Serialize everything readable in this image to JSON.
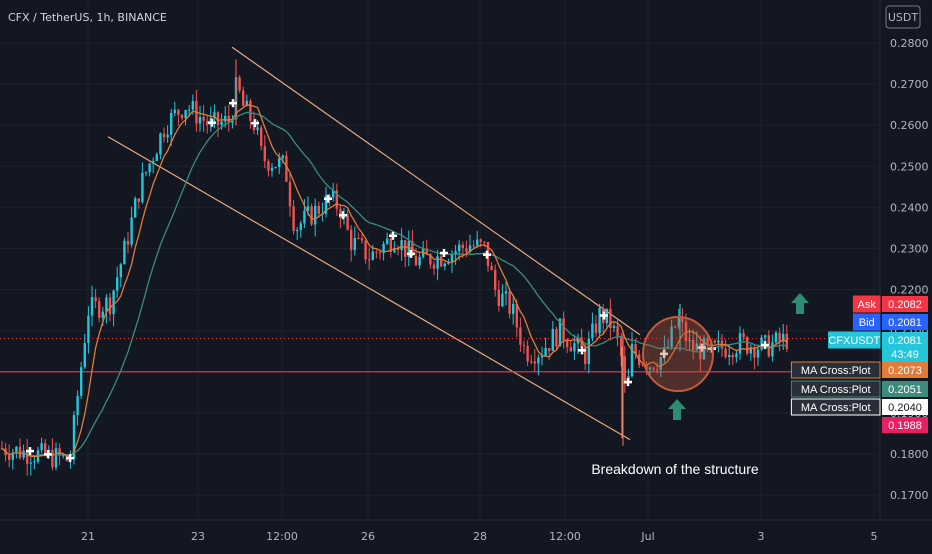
{
  "header": {
    "title": "CFX / TetherUS, 1h, BINANCE"
  },
  "currency_button": "USDT",
  "price_tags": [
    {
      "label": "Ask",
      "value": "0.2082",
      "value_num": 0.2082,
      "color": "#f23645",
      "text_color": "#ffffff"
    },
    {
      "label": "Bid",
      "value": "0.2081",
      "value_num": 0.2081,
      "color": "#2962ff",
      "text_color": "#ffffff"
    },
    {
      "label": "CFXUSDT",
      "value": "0.2081",
      "value_num": 0.2081,
      "countdown": "43:49",
      "color": "#26c6da",
      "text_color": "#ffffff"
    },
    {
      "label": "MA Cross:Plot",
      "value": "0.2073",
      "value_num": 0.2073,
      "color": "#e07b39",
      "text_color": "#ffffff"
    },
    {
      "label": "MA Cross:Plot",
      "value": "0.2051",
      "value_num": 0.2051,
      "color": "#3d8a7e",
      "text_color": "#ffffff"
    },
    {
      "label": "MA Cross:Plot",
      "value": "0.2040",
      "value_num": 0.204,
      "color": "#ffffff",
      "text_color": "#131722"
    },
    {
      "label": "",
      "value": "0.1988",
      "value_num": 0.1988,
      "color": "#e91e63",
      "text_color": "#ffffff"
    }
  ],
  "annotation": {
    "text": "Breakdown of the structure"
  },
  "colors": {
    "background": "#131722",
    "grid": "#1e222d",
    "up": "#26c6da",
    "down": "#ef5350",
    "ma_fast": "#e07b39",
    "ma_slow": "#3d8a7e",
    "support_line": "#f23645",
    "channel": "#e8a87c",
    "arrow": "#2e8b74",
    "circle": "#c45a3c"
  },
  "chart_data": {
    "type": "candlestick",
    "symbol": "CFX / TetherUS",
    "interval": "1h",
    "exchange": "BINANCE",
    "y_ticks": [
      0.17,
      0.18,
      0.19,
      0.2,
      0.21,
      0.22,
      0.23,
      0.24,
      0.25,
      0.26,
      0.27,
      0.28
    ],
    "y_tick_labels": [
      "0.1700",
      "0.1800",
      "0.1900",
      "0.2000",
      "0.2100",
      "0.2200",
      "0.2300",
      "0.2400",
      "0.2500",
      "0.2600",
      "0.2700",
      "0.2800"
    ],
    "x_tick_labels": [
      "21",
      "23",
      "12:00",
      "26",
      "28",
      "12:00",
      "Jul",
      "3",
      "5"
    ],
    "close_path": [
      [
        0,
        0.1815
      ],
      [
        70,
        0.1785
      ],
      [
        78,
        0.195
      ],
      [
        88,
        0.215
      ],
      [
        110,
        0.217
      ],
      [
        125,
        0.23
      ],
      [
        140,
        0.245
      ],
      [
        165,
        0.26
      ],
      [
        185,
        0.265
      ],
      [
        210,
        0.26
      ],
      [
        230,
        0.261
      ],
      [
        237,
        0.27
      ],
      [
        242,
        0.265
      ],
      [
        255,
        0.26
      ],
      [
        262,
        0.252
      ],
      [
        285,
        0.25
      ],
      [
        295,
        0.235
      ],
      [
        310,
        0.238
      ],
      [
        330,
        0.242
      ],
      [
        340,
        0.24
      ],
      [
        350,
        0.232
      ],
      [
        370,
        0.228
      ],
      [
        395,
        0.233
      ],
      [
        415,
        0.227
      ],
      [
        440,
        0.228
      ],
      [
        470,
        0.231
      ],
      [
        485,
        0.23
      ],
      [
        495,
        0.22
      ],
      [
        512,
        0.215
      ],
      [
        525,
        0.205
      ],
      [
        540,
        0.205
      ],
      [
        560,
        0.21
      ],
      [
        585,
        0.204
      ],
      [
        600,
        0.214
      ],
      [
        610,
        0.212
      ],
      [
        620,
        0.206
      ],
      [
        626,
        0.193
      ],
      [
        632,
        0.205
      ],
      [
        650,
        0.202
      ],
      [
        665,
        0.204
      ],
      [
        678,
        0.213
      ],
      [
        690,
        0.206
      ],
      [
        710,
        0.205
      ],
      [
        740,
        0.207
      ],
      [
        765,
        0.206
      ],
      [
        788,
        0.2081
      ]
    ],
    "support_level": 0.2,
    "channel": {
      "upper": [
        [
          232,
          0.279
        ],
        [
          640,
          0.209
        ]
      ],
      "lower": [
        [
          108,
          0.2572
        ],
        [
          630,
          0.1835
        ]
      ]
    },
    "current_price": 0.2081
  }
}
